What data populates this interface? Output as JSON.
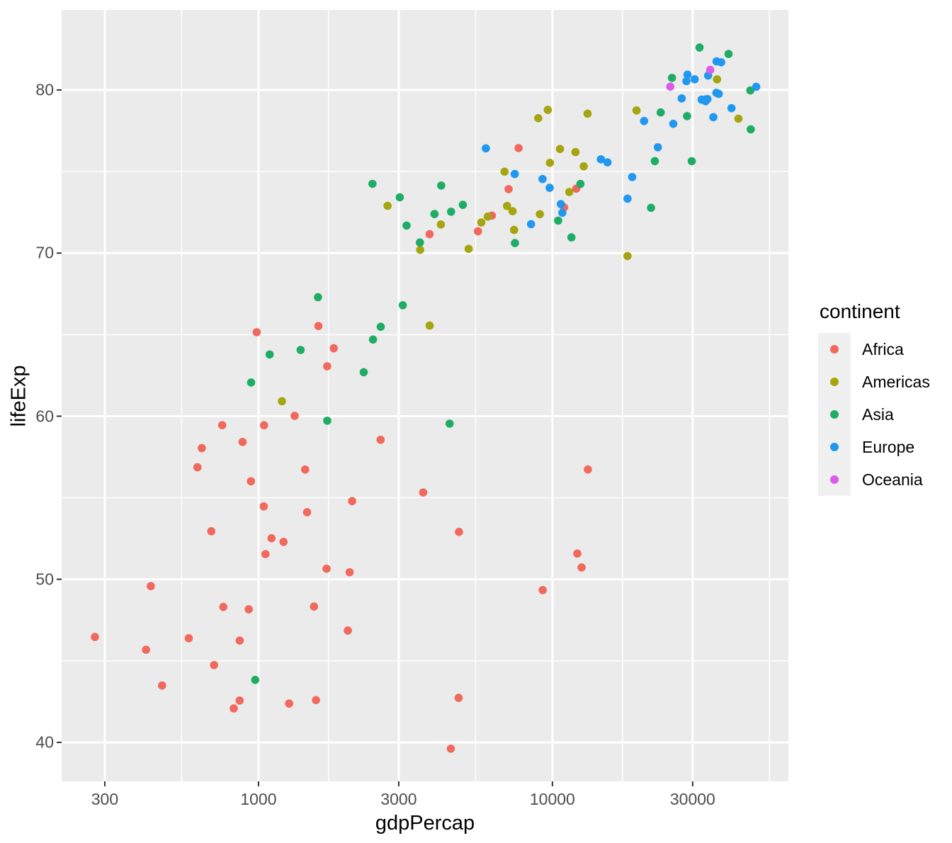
{
  "figure": {
    "background": "#ffffff",
    "panel_background": "#ebebeb",
    "grid_color": "#ffffff",
    "tick_mark_color": "#333333",
    "tick_label_color": "#4d4d4d",
    "axis_title_color": "#000000",
    "legend_key_background": "#f0f0f0"
  },
  "chart_data": {
    "type": "scatter",
    "title": "",
    "xlabel": "gdpPercap",
    "ylabel": "lifeExp",
    "x_scale": "log10",
    "grid": true,
    "legend": {
      "title": "continent",
      "position": "right"
    },
    "x_domain": [
      213.9,
      63500
    ],
    "y_domain": [
      37.61,
      84.91
    ],
    "x_ticks": {
      "values": [
        300,
        1000,
        3000,
        10000,
        30000
      ],
      "labels": [
        "300",
        "1000",
        "3000",
        "10000",
        "30000"
      ]
    },
    "y_ticks": {
      "values": [
        40,
        50,
        60,
        70,
        80
      ],
      "labels": [
        "40",
        "50",
        "60",
        "70",
        "80"
      ]
    },
    "x_minor_breaks": [
      547.7,
      1732.1,
      5477.2,
      17320.5,
      54772.3
    ],
    "y_minor_breaks": [
      45,
      55,
      65,
      75
    ],
    "point_radius": 5.8,
    "series": [
      {
        "name": "Africa",
        "color": "#f1685d",
        "points": [
          [
            6223.4,
            72.301
          ],
          [
            4797.2,
            42.731
          ],
          [
            1441.3,
            56.728
          ],
          [
            12569.9,
            50.728
          ],
          [
            1217.0,
            52.295
          ],
          [
            430.1,
            49.58
          ],
          [
            2042.1,
            50.43
          ],
          [
            706.0,
            44.741
          ],
          [
            1704.1,
            50.651
          ],
          [
            986.1,
            65.152
          ],
          [
            277.6,
            46.462
          ],
          [
            3632.6,
            55.322
          ],
          [
            1544.8,
            48.328
          ],
          [
            2082.5,
            54.791
          ],
          [
            5581.2,
            71.338
          ],
          [
            12154.1,
            51.579
          ],
          [
            641.4,
            58.04
          ],
          [
            690.8,
            52.947
          ],
          [
            13206.5,
            56.735
          ],
          [
            752.7,
            59.448
          ],
          [
            1327.6,
            60.022
          ],
          [
            942.7,
            56.007
          ],
          [
            579.2,
            46.388
          ],
          [
            1463.2,
            54.11
          ],
          [
            1569.3,
            42.592
          ],
          [
            414.5,
            45.678
          ],
          [
            12057.5,
            73.952
          ],
          [
            1044.8,
            59.443
          ],
          [
            759.3,
            48.303
          ],
          [
            1042.6,
            54.467
          ],
          [
            1803.2,
            64.164
          ],
          [
            10957.0,
            72.801
          ],
          [
            3820.2,
            71.164
          ],
          [
            823.7,
            42.082
          ],
          [
            4811.1,
            52.906
          ],
          [
            619.7,
            56.867
          ],
          [
            2014.0,
            46.859
          ],
          [
            7670.1,
            76.442
          ],
          [
            863.1,
            46.242
          ],
          [
            1598.4,
            65.528
          ],
          [
            1712.5,
            63.062
          ],
          [
            862.5,
            42.568
          ],
          [
            926.1,
            48.159
          ],
          [
            9269.7,
            49.339
          ],
          [
            2602.4,
            58.556
          ],
          [
            4513.5,
            39.613
          ],
          [
            1107.5,
            52.517
          ],
          [
            883.0,
            58.42
          ],
          [
            7092.9,
            73.923
          ],
          [
            1056.4,
            51.542
          ],
          [
            1271.2,
            42.384
          ],
          [
            469.7,
            43.487
          ]
        ]
      },
      {
        "name": "Americas",
        "color": "#a5a50f",
        "points": [
          [
            12779.4,
            75.32
          ],
          [
            3822.1,
            65.554
          ],
          [
            9065.8,
            72.39
          ],
          [
            36319.2,
            80.653
          ],
          [
            13171.6,
            78.553
          ],
          [
            7006.6,
            72.889
          ],
          [
            9645.1,
            78.782
          ],
          [
            8948.1,
            78.273
          ],
          [
            6025.4,
            72.235
          ],
          [
            6873.3,
            74.994
          ],
          [
            5728.4,
            71.878
          ],
          [
            5186.1,
            70.259
          ],
          [
            1201.6,
            60.916
          ],
          [
            3548.3,
            70.198
          ],
          [
            7320.9,
            72.567
          ],
          [
            11977.6,
            76.195
          ],
          [
            2749.3,
            72.899
          ],
          [
            9809.2,
            75.537
          ],
          [
            4172.8,
            71.752
          ],
          [
            7408.9,
            71.421
          ],
          [
            19328.7,
            78.746
          ],
          [
            18008.5,
            69.819
          ],
          [
            42951.7,
            78.242
          ],
          [
            10611.5,
            76.384
          ],
          [
            11415.8,
            73.747
          ]
        ]
      },
      {
        "name": "Asia",
        "color": "#1fad66",
        "points": [
          [
            974.6,
            43.828
          ],
          [
            29796.0,
            75.635
          ],
          [
            1391.3,
            64.062
          ],
          [
            1713.8,
            59.723
          ],
          [
            4959.1,
            72.961
          ],
          [
            39725.0,
            82.208
          ],
          [
            2452.2,
            64.698
          ],
          [
            3540.7,
            70.65
          ],
          [
            11605.7,
            70.964
          ],
          [
            4471.1,
            59.545
          ],
          [
            25523.3,
            80.745
          ],
          [
            31656.1,
            82.603
          ],
          [
            4519.5,
            72.535
          ],
          [
            1593.1,
            67.297
          ],
          [
            23348.1,
            78.623
          ],
          [
            47307.0,
            77.588
          ],
          [
            10461.1,
            71.993
          ],
          [
            12451.7,
            74.241
          ],
          [
            3095.8,
            66.803
          ],
          [
            944.0,
            62.069
          ],
          [
            1091.4,
            63.785
          ],
          [
            22316.2,
            75.64
          ],
          [
            2605.9,
            65.483
          ],
          [
            3190.5,
            71.688
          ],
          [
            21654.8,
            72.777
          ],
          [
            47143.2,
            79.972
          ],
          [
            3970.1,
            72.396
          ],
          [
            4184.5,
            74.143
          ],
          [
            28718.3,
            78.4
          ],
          [
            7458.4,
            70.616
          ],
          [
            2441.6,
            74.249
          ],
          [
            3025.3,
            73.422
          ],
          [
            2280.8,
            62.698
          ]
        ]
      },
      {
        "name": "Europe",
        "color": "#2098f0",
        "points": [
          [
            5937.0,
            76.423
          ],
          [
            36126.5,
            79.829
          ],
          [
            33692.6,
            79.441
          ],
          [
            7446.3,
            74.852
          ],
          [
            10680.8,
            73.005
          ],
          [
            14619.2,
            75.748
          ],
          [
            22833.3,
            76.486
          ],
          [
            35278.4,
            78.332
          ],
          [
            33207.1,
            79.313
          ],
          [
            30470.0,
            80.657
          ],
          [
            32170.4,
            79.406
          ],
          [
            27538.4,
            79.483
          ],
          [
            18008.9,
            73.338
          ],
          [
            36180.8,
            81.757
          ],
          [
            40676.0,
            78.885
          ],
          [
            28569.7,
            80.546
          ],
          [
            9253.9,
            74.543
          ],
          [
            36797.9,
            79.762
          ],
          [
            49357.2,
            80.196
          ],
          [
            15389.9,
            75.563
          ],
          [
            20509.6,
            78.098
          ],
          [
            10808.5,
            72.476
          ],
          [
            9786.5,
            74.002
          ],
          [
            18678.3,
            74.663
          ],
          [
            25768.3,
            77.926
          ],
          [
            28821.1,
            80.941
          ],
          [
            33859.7,
            80.884
          ],
          [
            37506.4,
            81.701
          ],
          [
            8458.3,
            71.777
          ],
          [
            33203.3,
            79.425
          ]
        ]
      },
      {
        "name": "Oceania",
        "color": "#dc5be9",
        "points": [
          [
            34435.4,
            81.235
          ],
          [
            25185.0,
            80.204
          ]
        ]
      }
    ]
  }
}
